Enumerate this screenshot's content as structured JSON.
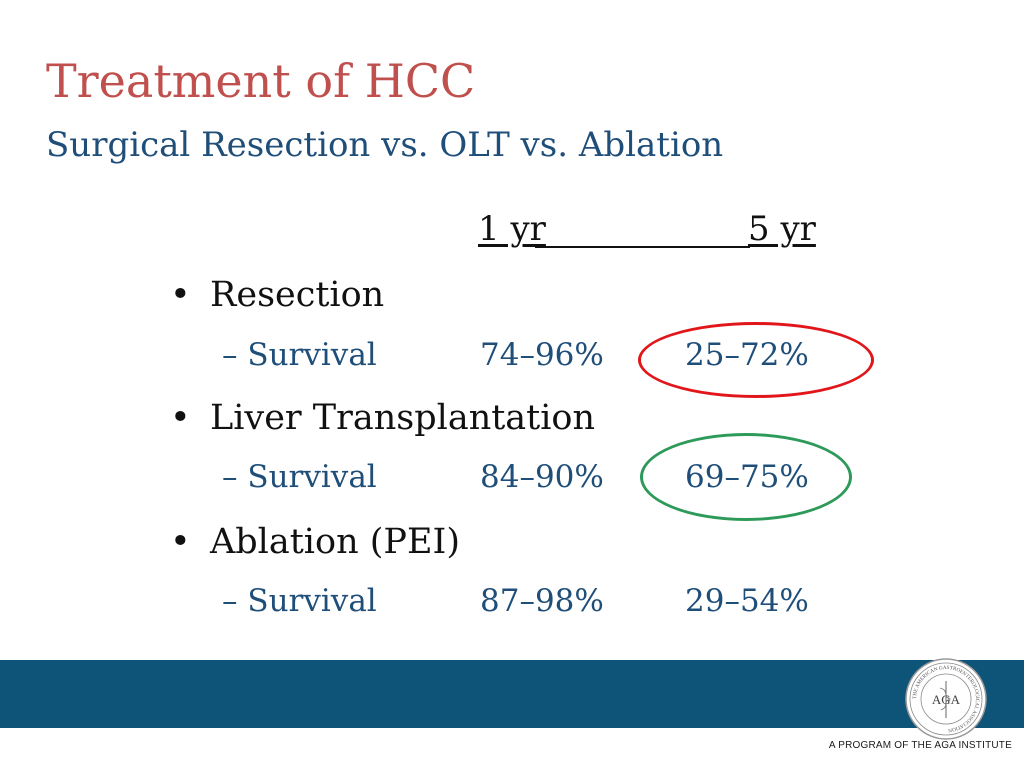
{
  "slide": {
    "title": "Treatment of HCC",
    "subtitle": "Surgical Resection vs. OLT vs. Ablation"
  },
  "table": {
    "col_1yr": "1 yr",
    "col_5yr": "5 yr",
    "rows": [
      {
        "bullet": "•",
        "category": "Resection",
        "sub": "– Survival",
        "one_year": "74–96%",
        "five_year": "25–72%"
      },
      {
        "bullet": "•",
        "category": "Liver Transplantation",
        "sub": "– Survival",
        "one_year": "84–90%",
        "five_year": "69–75%"
      },
      {
        "bullet": "•",
        "category": "Ablation (PEI)",
        "sub": "– Survival",
        "one_year": "87–98%",
        "five_year": "29–54%"
      }
    ]
  },
  "highlights": {
    "resection_ring_color": "#e0161b",
    "transplant_ring_color": "#2e9a59"
  },
  "footer": {
    "program_text": "A PROGRAM OF THE AGA INSTITUTE",
    "seal_letters": "AGA",
    "seal_ring_text": "THE AMERICAN GASTROENTEROLOGICAL ASSOCIATION"
  },
  "colors": {
    "title": "#c0504d",
    "subtitle": "#1f4e79",
    "band": "#0e5479"
  }
}
